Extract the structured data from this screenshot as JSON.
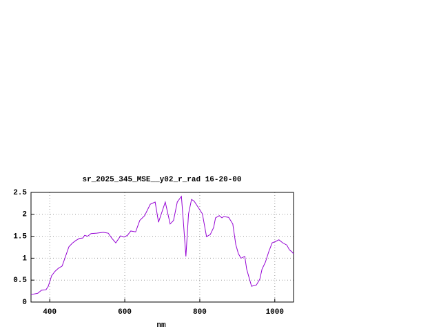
{
  "chart_data": {
    "type": "line",
    "title": "sr_2025_345_MSE__y02_r_rad 16-20-00",
    "x_label": "nm",
    "xlim": [
      350,
      1050
    ],
    "xticks": [
      400,
      600,
      800,
      1000
    ],
    "ylim": [
      0,
      2.5
    ],
    "yticks": [
      0,
      0.5,
      1,
      1.5,
      2,
      2.5
    ],
    "grid": true,
    "x": [
      350,
      368,
      378,
      390,
      396,
      405,
      414,
      423,
      433,
      442,
      451,
      460,
      469,
      479,
      488,
      493,
      501,
      510,
      525,
      543,
      556,
      565,
      576,
      589,
      598,
      607,
      616,
      629,
      640,
      653,
      668,
      681,
      690,
      708,
      721,
      730,
      740,
      751,
      756,
      763,
      770,
      778,
      785,
      795,
      807,
      818,
      828,
      837,
      842,
      852,
      859,
      864,
      877,
      888,
      896,
      903,
      910,
      920,
      925,
      938,
      951,
      960,
      966,
      975,
      984,
      993,
      1002,
      1011,
      1021,
      1032,
      1039,
      1045,
      1050
    ],
    "series": [
      {
        "name": "radiance",
        "color": "#9400d3",
        "values": [
          0.17,
          0.2,
          0.27,
          0.28,
          0.36,
          0.6,
          0.7,
          0.77,
          0.82,
          1.04,
          1.26,
          1.34,
          1.4,
          1.45,
          1.46,
          1.52,
          1.5,
          1.56,
          1.57,
          1.59,
          1.57,
          1.46,
          1.35,
          1.51,
          1.48,
          1.52,
          1.62,
          1.6,
          1.86,
          1.97,
          2.23,
          2.28,
          1.82,
          2.28,
          1.78,
          1.86,
          2.28,
          2.41,
          1.86,
          1.04,
          2.01,
          2.34,
          2.3,
          2.17,
          2.01,
          1.49,
          1.54,
          1.7,
          1.92,
          1.97,
          1.92,
          1.95,
          1.93,
          1.78,
          1.31,
          1.1,
          1.0,
          1.04,
          0.75,
          0.36,
          0.39,
          0.52,
          0.75,
          0.91,
          1.15,
          1.35,
          1.38,
          1.42,
          1.35,
          1.3,
          1.19,
          1.15,
          1.1
        ]
      }
    ]
  }
}
